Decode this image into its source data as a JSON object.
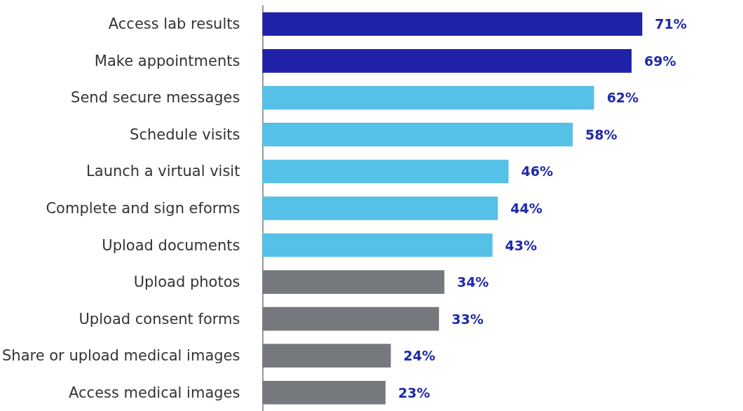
{
  "chart_data": {
    "type": "bar",
    "orientation": "horizontal",
    "categories": [
      "Access lab results",
      "Make appointments",
      "Send secure messages",
      "Schedule visits",
      "Launch a virtual visit",
      "Complete and sign eforms",
      "Upload documents",
      "Upload photos",
      "Upload consent forms",
      "Share or upload medical images",
      "Access medical images"
    ],
    "values": [
      71,
      69,
      62,
      58,
      46,
      44,
      43,
      34,
      33,
      24,
      23
    ],
    "colors": [
      "#1f22a8",
      "#1f22a8",
      "#56c1e8",
      "#56c1e8",
      "#56c1e8",
      "#56c1e8",
      "#56c1e8",
      "#75787d",
      "#75787d",
      "#75787d",
      "#75787d"
    ],
    "value_labels": [
      "71%",
      "69%",
      "62%",
      "58%",
      "46%",
      "44%",
      "43%",
      "34%",
      "33%",
      "24%",
      "23%"
    ],
    "tick_labels": "y"
  }
}
